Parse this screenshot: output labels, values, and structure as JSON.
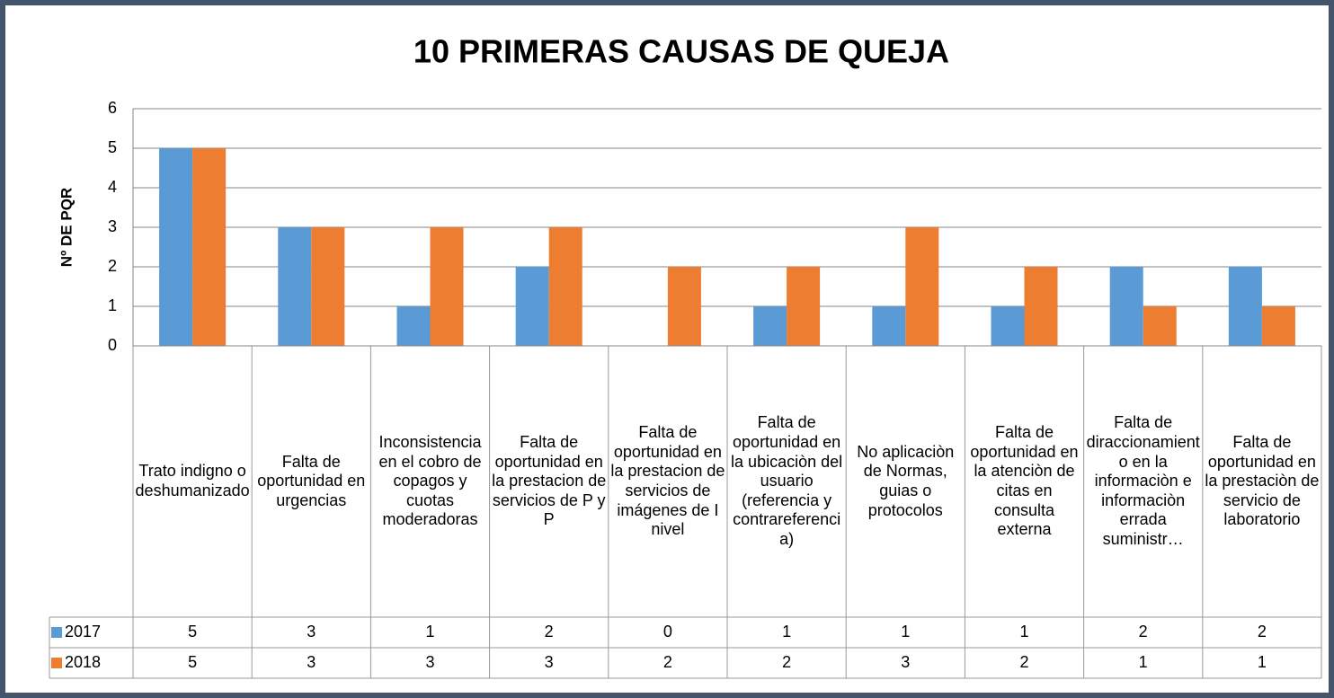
{
  "chart_data": {
    "type": "bar",
    "title": "10 PRIMERAS CAUSAS DE QUEJA",
    "y_label": "Nº DE PQR",
    "categories": [
      "Trato indigno o deshumanizado",
      "Falta de oportunidad en urgencias",
      "Inconsistencia en el cobro de copagos y cuotas moderadoras",
      "Falta de oportunidad en la prestacion de servicios de P y P",
      "Falta de oportunidad en la prestacion de servicios de imágenes de I nivel",
      "Falta de oportunidad en la ubicaciòn del usuario (referencia y contrareferencia)",
      "No aplicaciòn de Normas, guias o protocolos",
      "Falta de oportunidad en la atenciòn de citas en consulta externa",
      "Falta de diraccionamiento en la informaciòn e informaciòn errada suministr…",
      "Falta de oportunidad en la prestaciòn de servicio de laboratorio"
    ],
    "series": [
      {
        "name": "2017",
        "color": "#5b9bd5",
        "values": [
          5,
          3,
          1,
          2,
          0,
          1,
          1,
          1,
          2,
          2
        ]
      },
      {
        "name": "2018",
        "color": "#ed7d31",
        "values": [
          5,
          3,
          3,
          3,
          2,
          2,
          3,
          2,
          1,
          1
        ]
      }
    ],
    "ylim": [
      0,
      6
    ],
    "yticks": [
      0,
      1,
      2,
      3,
      4,
      5,
      6
    ],
    "grid": true,
    "legend": "data-table"
  }
}
